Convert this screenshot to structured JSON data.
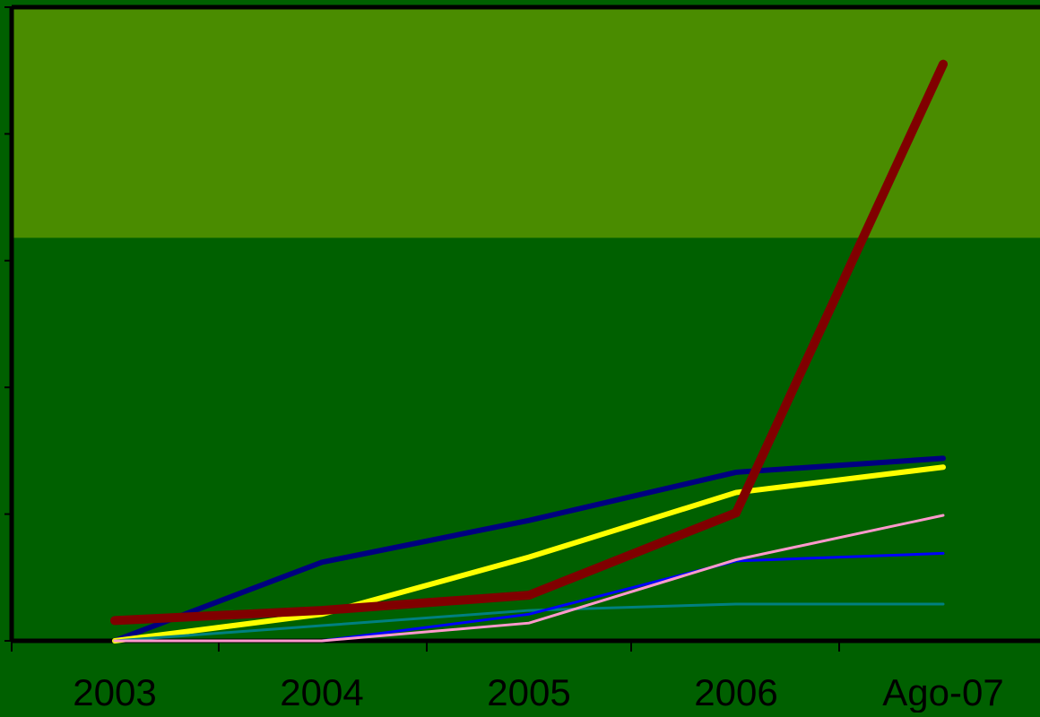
{
  "colors": {
    "background": "#006000",
    "upper_band": "#4a8c00",
    "axis": "#000000"
  },
  "chart_data": {
    "type": "line",
    "title": "",
    "xlabel": "",
    "ylabel": "",
    "categories": [
      "2003",
      "2004",
      "2005",
      "2006",
      "Ago-07"
    ],
    "ylim": [
      0,
      5
    ],
    "y_ticks": [
      0,
      1,
      2,
      3,
      4,
      5
    ],
    "y_tick_labels_shown": false,
    "grid": false,
    "legend": "none",
    "shaded_band": {
      "from": 3.18,
      "to": 5.0,
      "color": "#4a8c00"
    },
    "series": [
      {
        "values": [
          0.0,
          0.62,
          0.95,
          1.33,
          1.44
        ],
        "color": "#000080",
        "width": 6
      },
      {
        "values": [
          0.0,
          0.21,
          0.66,
          1.17,
          1.37
        ],
        "color": "#ffff00",
        "width": 6
      },
      {
        "values": [
          0.0,
          0.12,
          0.24,
          0.29,
          0.29
        ],
        "color": "#008080",
        "width": 3
      },
      {
        "values": [
          0.0,
          0.0,
          0.21,
          0.63,
          0.69
        ],
        "color": "#0000ff",
        "width": 3
      },
      {
        "values": [
          0.0,
          0.0,
          0.14,
          0.64,
          0.99
        ],
        "color": "#ff99cc",
        "width": 3
      },
      {
        "values": [
          0.16,
          0.24,
          0.36,
          1.01,
          4.55
        ],
        "color": "#800000",
        "width": 10
      }
    ]
  }
}
